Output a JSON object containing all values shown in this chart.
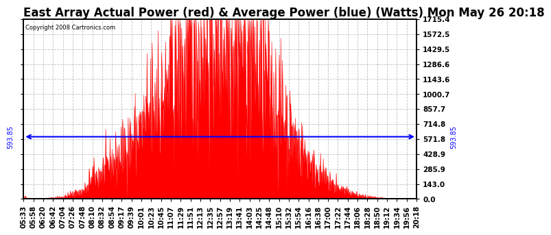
{
  "title": "East Array Actual Power (red) & Average Power (blue) (Watts) Mon May 26 20:18",
  "copyright": "Copyright 2008 Cartronics.com",
  "average_power": 593.85,
  "y_ticks": [
    0.0,
    143.0,
    285.9,
    428.9,
    571.8,
    714.8,
    857.7,
    1000.7,
    1143.6,
    1286.6,
    1429.5,
    1572.5,
    1715.4
  ],
  "y_max": 1715.4,
  "x_labels": [
    "05:33",
    "05:58",
    "06:20",
    "06:42",
    "07:04",
    "07:26",
    "07:48",
    "08:10",
    "08:32",
    "08:54",
    "09:17",
    "09:39",
    "10:01",
    "10:23",
    "10:45",
    "11:07",
    "11:29",
    "11:51",
    "12:13",
    "12:35",
    "12:57",
    "13:19",
    "13:41",
    "14:03",
    "14:25",
    "14:48",
    "15:10",
    "15:32",
    "15:54",
    "16:16",
    "16:38",
    "17:00",
    "17:22",
    "17:44",
    "18:06",
    "18:28",
    "18:50",
    "19:12",
    "19:34",
    "19:56",
    "20:18"
  ],
  "fill_color": "#ff0000",
  "line_color": "#ff0000",
  "avg_line_color": "#0000ff",
  "bg_color": "#ffffff",
  "grid_color": "#b0b0b0",
  "title_fontsize": 12,
  "tick_fontsize": 7.5,
  "avg_label_fontsize": 7
}
